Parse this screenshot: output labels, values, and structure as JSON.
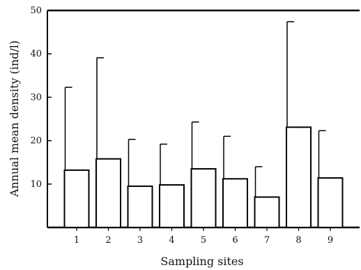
{
  "chart_data": {
    "type": "bar",
    "title": "",
    "xlabel": "Sampling sites",
    "ylabel": "Annual mean density (ind/l)",
    "categories": [
      "1",
      "2",
      "3",
      "4",
      "5",
      "6",
      "7",
      "8",
      "9"
    ],
    "values": [
      13.2,
      15.8,
      9.5,
      9.8,
      13.5,
      11.2,
      7.0,
      23.1,
      11.4
    ],
    "error_upper": [
      32.3,
      39.1,
      20.3,
      19.2,
      24.3,
      21.0,
      14.0,
      47.4,
      22.3
    ],
    "ylim": [
      0,
      50
    ],
    "yticks": [
      10,
      20,
      30,
      40,
      50
    ],
    "ytick_labels": [
      "10",
      "20",
      "30",
      "40",
      "50"
    ],
    "grid": false,
    "legend": "none",
    "colors": {
      "bar_fill": "#ffffff",
      "stroke": "#000000"
    }
  }
}
